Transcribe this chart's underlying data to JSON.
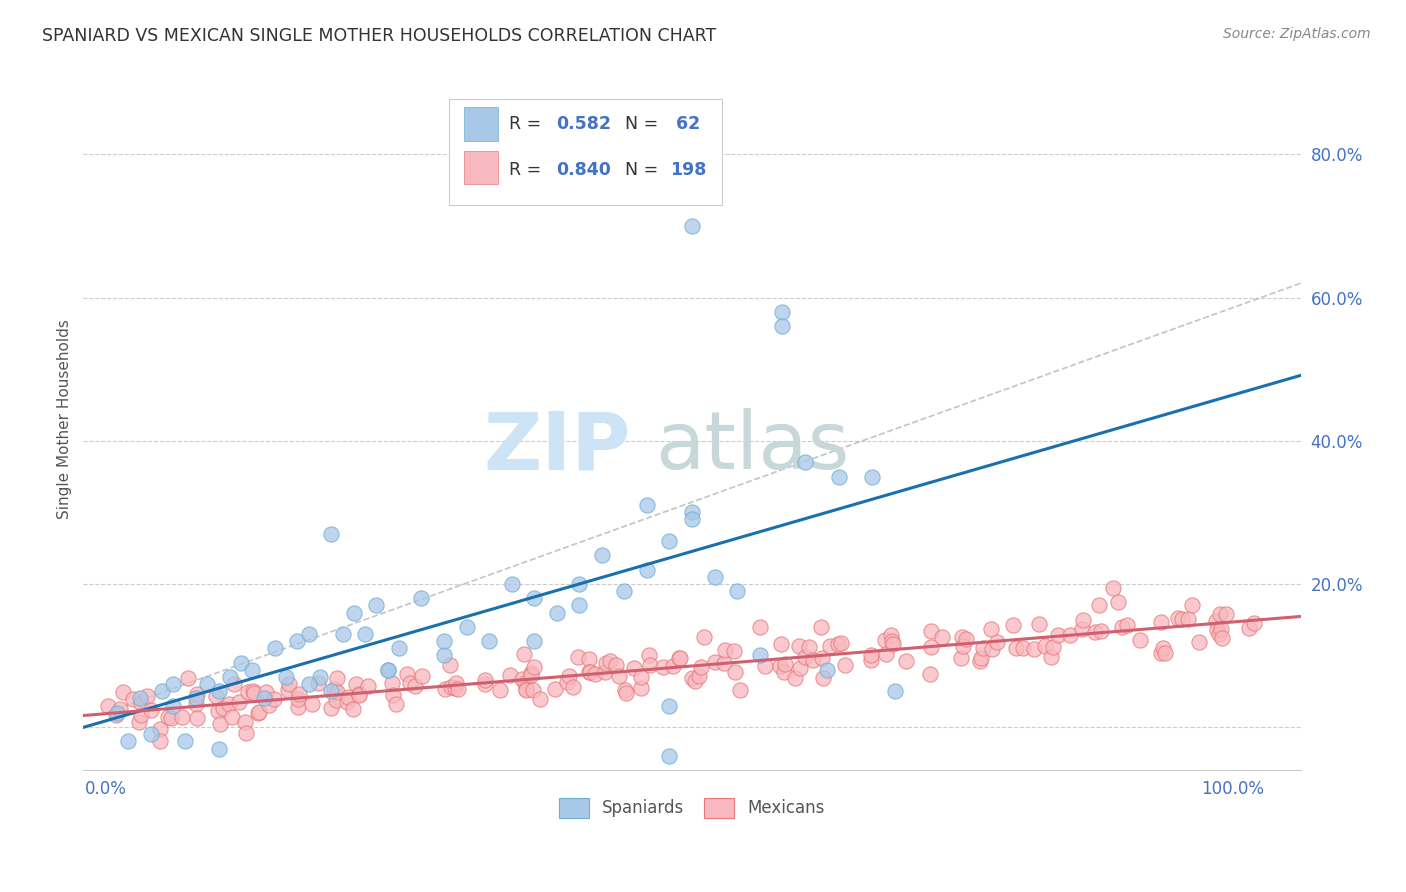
{
  "title": "SPANIARD VS MEXICAN SINGLE MOTHER HOUSEHOLDS CORRELATION CHART",
  "source": "Source: ZipAtlas.com",
  "ylabel": "Single Mother Households",
  "spaniard_color": "#a8c8e8",
  "spaniard_edge_color": "#6baed6",
  "mexican_color": "#f8b8c0",
  "mexican_edge_color": "#e87878",
  "spaniard_line_color": "#1a6faf",
  "mexican_line_color": "#d06070",
  "dashed_line_color": "#aaaaaa",
  "legend_R_color": "#4472c4",
  "legend_text_color": "#333333",
  "axis_text_color": "#4472c4",
  "ylabel_color": "#555555",
  "title_color": "#333333",
  "source_color": "#888888",
  "grid_color": "#cccccc",
  "spine_color": "#cccccc",
  "xlim": [
    -0.02,
    1.06
  ],
  "ylim": [
    -0.06,
    0.92
  ],
  "yticks": [
    0.0,
    0.2,
    0.4,
    0.6,
    0.8
  ],
  "ytick_labels": [
    "",
    "20.0%",
    "40.0%",
    "60.0%",
    "80.0%"
  ],
  "xtick_left_label": "0.0%",
  "xtick_right_label": "100.0%",
  "spaniard_R": 0.582,
  "spaniard_N": 62,
  "mexican_R": 0.84,
  "mexican_N": 198,
  "watermark_zip_color": "#cce4f5",
  "watermark_atlas_color": "#c8d8d8"
}
